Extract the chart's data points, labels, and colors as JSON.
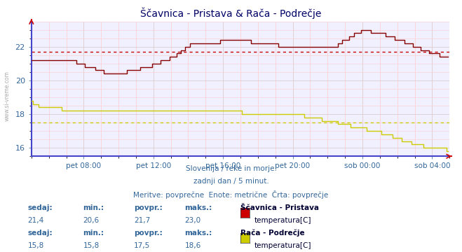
{
  "title": "Ščavnica - Pristava & Rača - Podrečje",
  "title_color": "#000066",
  "bg_color": "#ffffff",
  "plot_bg_color": "#f0f0ff",
  "xlabel_ticks": [
    "pet 08:00",
    "pet 12:00",
    "pet 16:00",
    "pet 20:00",
    "sob 00:00",
    "sob 04:00"
  ],
  "tick_x_positions": [
    36,
    84,
    132,
    180,
    228,
    276
  ],
  "ylabel_ticks": [
    16,
    18,
    20,
    22
  ],
  "ylim": [
    15.5,
    23.5
  ],
  "xlim": [
    0,
    288
  ],
  "series1_color": "#880000",
  "series2_color": "#cccc00",
  "avg_line1_color": "#cc0000",
  "avg_line2_color": "#cccc00",
  "avg_line1_value": 21.7,
  "avg_line2_value": 17.5,
  "subtitle1": "Slovenija / reke in morje.",
  "subtitle2": "zadnji dan / 5 minut.",
  "subtitle3": "Meritve: povprečne  Enote: metrične  Črta: povprečje",
  "subtitle_color": "#336699",
  "label_color": "#336699",
  "station1_name": "Ščavnica - Pristava",
  "station2_name": "Rača - Podrečje",
  "stat1_sedaj": "21,4",
  "stat1_min": "20,6",
  "stat1_povpr": "21,7",
  "stat1_maks": "23,0",
  "stat1_type": "temperatura[C]",
  "stat2_sedaj": "15,8",
  "stat2_min": "15,8",
  "stat2_povpr": "17,5",
  "stat2_maks": "18,6",
  "stat2_type": "temperatura[C]",
  "left_label": "www.si-vreme.com",
  "left_label_color": "#aaaaaa",
  "spine_bottom_color": "#4444cc",
  "spine_left_color": "#4444cc",
  "tick_label_color": "#336699",
  "y_tick_color": "#336699",
  "minor_grid_color": "#ffcccc",
  "major_grid_color": "#ddcccc",
  "swatch1_color": "#cc0000",
  "swatch2_color": "#cccc00"
}
